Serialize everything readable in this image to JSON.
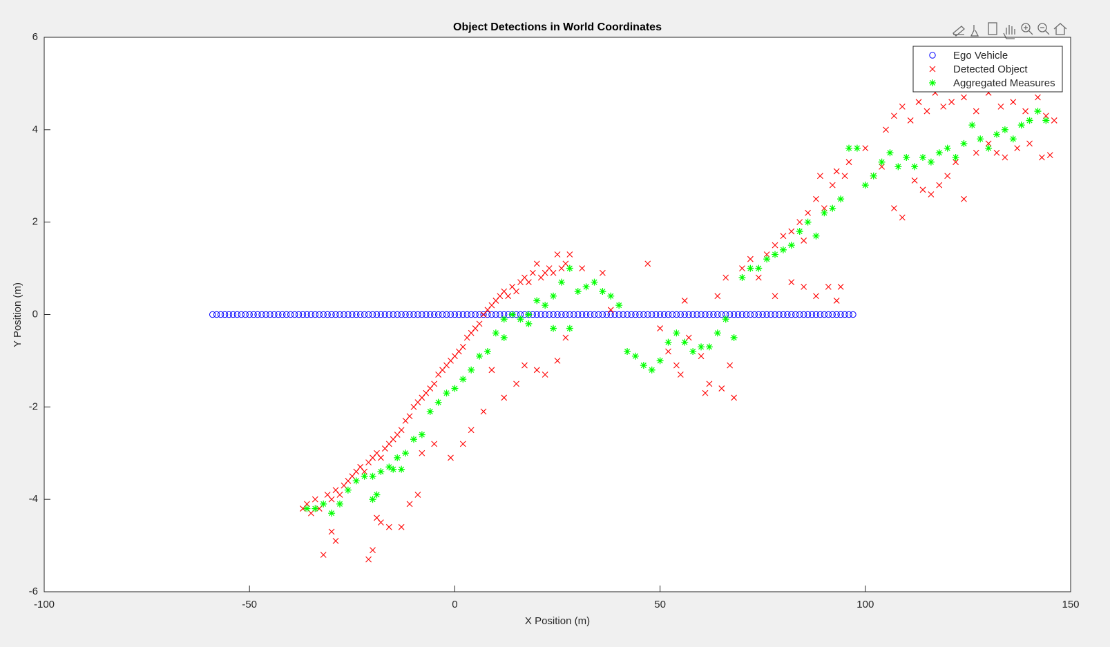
{
  "chart_data": {
    "type": "scatter",
    "title": "Object Detections in World Coordinates",
    "x_label": "X Position (m)",
    "y_label": "Y Position (m)",
    "xlim": [
      -100,
      150
    ],
    "xticks": [
      -100,
      -50,
      0,
      50,
      100,
      150
    ],
    "ylim": [
      -6,
      6
    ],
    "yticks": [
      -6,
      -4,
      -2,
      0,
      2,
      4,
      6
    ],
    "grid": false,
    "legend_location": "northeast",
    "series": [
      {
        "name": "Ego Vehicle",
        "color": "#0000ff",
        "marker": "circle",
        "x": [
          -59,
          -58,
          -57,
          -56,
          -55,
          -54,
          -53,
          -52,
          -51,
          -50,
          -49,
          -48,
          -47,
          -46,
          -45,
          -44,
          -43,
          -42,
          -41,
          -40,
          -39,
          -38,
          -37,
          -36,
          -35,
          -34,
          -33,
          -32,
          -31,
          -30,
          -29,
          -28,
          -27,
          -26,
          -25,
          -24,
          -23,
          -22,
          -21,
          -20,
          -19,
          -18,
          -17,
          -16,
          -15,
          -14,
          -13,
          -12,
          -11,
          -10,
          -9,
          -8,
          -7,
          -6,
          -5,
          -4,
          -3,
          -2,
          -1,
          0,
          1,
          2,
          3,
          4,
          5,
          6,
          7,
          8,
          9,
          10,
          11,
          12,
          13,
          14,
          15,
          16,
          17,
          18,
          19,
          20,
          21,
          22,
          23,
          24,
          25,
          26,
          27,
          28,
          29,
          30,
          31,
          32,
          33,
          34,
          35,
          36,
          37,
          38,
          39,
          40,
          41,
          42,
          43,
          44,
          45,
          46,
          47,
          48,
          49,
          50,
          51,
          52,
          53,
          54,
          55,
          56,
          57,
          58,
          59,
          60,
          61,
          62,
          63,
          64,
          65,
          66,
          67,
          68,
          69,
          70,
          71,
          72,
          73,
          74,
          75,
          76,
          77,
          78,
          79,
          80,
          81,
          82,
          83,
          84,
          85,
          86,
          87,
          88,
          89,
          90,
          91,
          92,
          93,
          94,
          95,
          96,
          97
        ],
        "y": [
          0,
          0,
          0,
          0,
          0,
          0,
          0,
          0,
          0,
          0,
          0,
          0,
          0,
          0,
          0,
          0,
          0,
          0,
          0,
          0,
          0,
          0,
          0,
          0,
          0,
          0,
          0,
          0,
          0,
          0,
          0,
          0,
          0,
          0,
          0,
          0,
          0,
          0,
          0,
          0,
          0,
          0,
          0,
          0,
          0,
          0,
          0,
          0,
          0,
          0,
          0,
          0,
          0,
          0,
          0,
          0,
          0,
          0,
          0,
          0,
          0,
          0,
          0,
          0,
          0,
          0,
          0,
          0,
          0,
          0,
          0,
          0,
          0,
          0,
          0,
          0,
          0,
          0,
          0,
          0,
          0,
          0,
          0,
          0,
          0,
          0,
          0,
          0,
          0,
          0,
          0,
          0,
          0,
          0,
          0,
          0,
          0,
          0,
          0,
          0,
          0,
          0,
          0,
          0,
          0,
          0,
          0,
          0,
          0,
          0,
          0,
          0,
          0,
          0,
          0,
          0,
          0,
          0,
          0,
          0,
          0,
          0,
          0,
          0,
          0,
          0,
          0,
          0,
          0,
          0,
          0,
          0,
          0,
          0,
          0,
          0,
          0,
          0,
          0,
          0,
          0,
          0,
          0,
          0,
          0,
          0,
          0,
          0,
          0,
          0,
          0,
          0,
          0,
          0,
          0,
          0,
          0
        ]
      },
      {
        "name": "Detected Object",
        "color": "#ff0000",
        "marker": "x",
        "x": [
          -37,
          -36,
          -35,
          -34,
          -33,
          -31,
          -30,
          -29,
          -28,
          -27,
          -26,
          -25,
          -24,
          -23,
          -22,
          -21,
          -20,
          -19,
          -18,
          -17,
          -16,
          -15,
          -14,
          -13,
          -12,
          -11,
          -10,
          -9,
          -8,
          -7,
          -6,
          -5,
          -4,
          -3,
          -2,
          -1,
          0,
          1,
          2,
          3,
          4,
          5,
          6,
          7,
          8,
          9,
          10,
          11,
          12,
          13,
          14,
          15,
          16,
          17,
          18,
          19,
          20,
          21,
          22,
          23,
          24,
          25,
          26,
          27,
          28,
          -32,
          -29,
          -21,
          -20,
          -18,
          -16,
          -13,
          -11,
          -9,
          -30,
          -19,
          -8,
          -5,
          -1,
          2,
          4,
          7,
          9,
          12,
          15,
          17,
          20,
          22,
          25,
          27,
          31,
          36,
          38,
          47,
          50,
          52,
          54,
          55,
          57,
          56,
          60,
          61,
          62,
          65,
          67,
          68,
          64,
          66,
          70,
          72,
          74,
          76,
          78,
          80,
          82,
          84,
          85,
          86,
          88,
          89,
          90,
          92,
          93,
          95,
          96,
          78,
          82,
          85,
          88,
          91,
          93,
          94,
          105,
          107,
          109,
          111,
          113,
          115,
          117,
          119,
          121,
          124,
          127,
          130,
          133,
          136,
          139,
          142,
          144,
          146,
          104,
          107,
          109,
          112,
          114,
          116,
          118,
          120,
          122,
          124,
          127,
          130,
          132,
          134,
          137,
          140,
          143,
          145,
          100,
          102
        ],
        "y": [
          -4.2,
          -4.1,
          -4.3,
          -4.0,
          -4.2,
          -3.9,
          -4.0,
          -3.8,
          -3.9,
          -3.7,
          -3.6,
          -3.5,
          -3.4,
          -3.3,
          -3.4,
          -3.2,
          -3.1,
          -3.0,
          -3.1,
          -2.9,
          -2.8,
          -2.7,
          -2.6,
          -2.5,
          -2.3,
          -2.2,
          -2.0,
          -1.9,
          -1.8,
          -1.7,
          -1.6,
          -1.5,
          -1.3,
          -1.2,
          -1.1,
          -1.0,
          -0.9,
          -0.8,
          -0.7,
          -0.5,
          -0.4,
          -0.3,
          -0.2,
          0.0,
          0.1,
          0.2,
          0.3,
          0.4,
          0.5,
          0.4,
          0.6,
          0.5,
          0.7,
          0.8,
          0.7,
          0.9,
          1.1,
          0.8,
          0.9,
          1.0,
          0.9,
          1.3,
          1.0,
          1.1,
          1.3,
          -5.2,
          -4.9,
          -5.3,
          -5.1,
          -4.5,
          -4.6,
          -4.6,
          -4.1,
          -3.9,
          -4.7,
          -4.4,
          -3.0,
          -2.8,
          -3.1,
          -2.8,
          -2.5,
          -2.1,
          -1.2,
          -1.8,
          -1.5,
          -1.1,
          -1.2,
          -1.3,
          -1.0,
          -0.5,
          1.0,
          0.9,
          0.1,
          1.1,
          -0.3,
          -0.8,
          -1.1,
          -1.3,
          -0.5,
          0.3,
          -0.9,
          -1.7,
          -1.5,
          -1.6,
          -1.1,
          -1.8,
          0.4,
          0.8,
          1.0,
          1.2,
          0.8,
          1.3,
          1.5,
          1.7,
          1.8,
          2.0,
          1.6,
          2.2,
          2.5,
          3.0,
          2.3,
          2.8,
          3.1,
          3.0,
          3.3,
          0.4,
          0.7,
          0.6,
          0.4,
          0.6,
          0.3,
          0.6,
          4.0,
          4.3,
          4.5,
          4.2,
          4.6,
          4.4,
          4.8,
          4.5,
          4.6,
          4.7,
          4.4,
          4.8,
          4.5,
          4.6,
          4.4,
          4.7,
          4.3,
          4.2,
          3.2,
          2.3,
          2.1,
          2.9,
          2.7,
          2.6,
          2.8,
          3.0,
          3.3,
          2.5,
          3.5,
          3.7,
          3.5,
          3.4,
          3.6,
          3.7,
          3.4,
          3.45,
          3.6,
          3.0
        ]
      },
      {
        "name": "Aggregated Measures",
        "color": "#00ff00",
        "marker": "asterisk",
        "x": [
          -36,
          -34,
          -32,
          -30,
          -28,
          -26,
          -24,
          -22,
          -20,
          -18,
          -16,
          -14,
          -12,
          -20,
          -19,
          -15,
          -13,
          -10,
          -8,
          -6,
          -4,
          -2,
          0,
          2,
          4,
          6,
          8,
          10,
          12,
          14,
          16,
          18,
          20,
          22,
          24,
          26,
          28,
          30,
          32,
          34,
          36,
          38,
          40,
          42,
          44,
          46,
          48,
          50,
          52,
          54,
          56,
          58,
          60,
          62,
          64,
          66,
          68,
          70,
          72,
          74,
          76,
          78,
          80,
          82,
          84,
          86,
          88,
          90,
          92,
          94,
          96,
          98,
          100,
          102,
          104,
          106,
          108,
          110,
          112,
          114,
          116,
          118,
          120,
          122,
          124,
          126,
          128,
          130,
          132,
          134,
          136,
          138,
          140,
          142,
          144,
          28,
          24,
          18,
          12
        ],
        "y": [
          -4.2,
          -4.2,
          -4.1,
          -4.3,
          -4.1,
          -3.8,
          -3.6,
          -3.5,
          -3.5,
          -3.4,
          -3.3,
          -3.1,
          -3.0,
          -4.0,
          -3.9,
          -3.35,
          -3.35,
          -2.7,
          -2.6,
          -2.1,
          -1.9,
          -1.7,
          -1.6,
          -1.4,
          -1.2,
          -0.9,
          -0.8,
          -0.4,
          -0.1,
          0,
          -0.1,
          0,
          0.3,
          0.2,
          0.4,
          0.7,
          1.0,
          0.5,
          0.6,
          0.7,
          0.5,
          0.4,
          0.2,
          -0.8,
          -0.9,
          -1.1,
          -1.2,
          -1.0,
          -0.6,
          -0.4,
          -0.6,
          -0.8,
          -0.7,
          -0.7,
          -0.4,
          -0.1,
          -0.5,
          0.8,
          1.0,
          1.0,
          1.2,
          1.3,
          1.4,
          1.5,
          1.8,
          2.0,
          1.7,
          2.2,
          2.3,
          2.5,
          3.6,
          3.6,
          2.8,
          3.0,
          3.3,
          3.5,
          3.2,
          3.4,
          3.2,
          3.4,
          3.3,
          3.5,
          3.6,
          3.4,
          3.7,
          4.1,
          3.8,
          3.6,
          3.9,
          4.0,
          3.8,
          4.1,
          4.2,
          4.4,
          4.2,
          -0.3,
          -0.3,
          -0.2,
          -0.5
        ]
      }
    ]
  }
}
